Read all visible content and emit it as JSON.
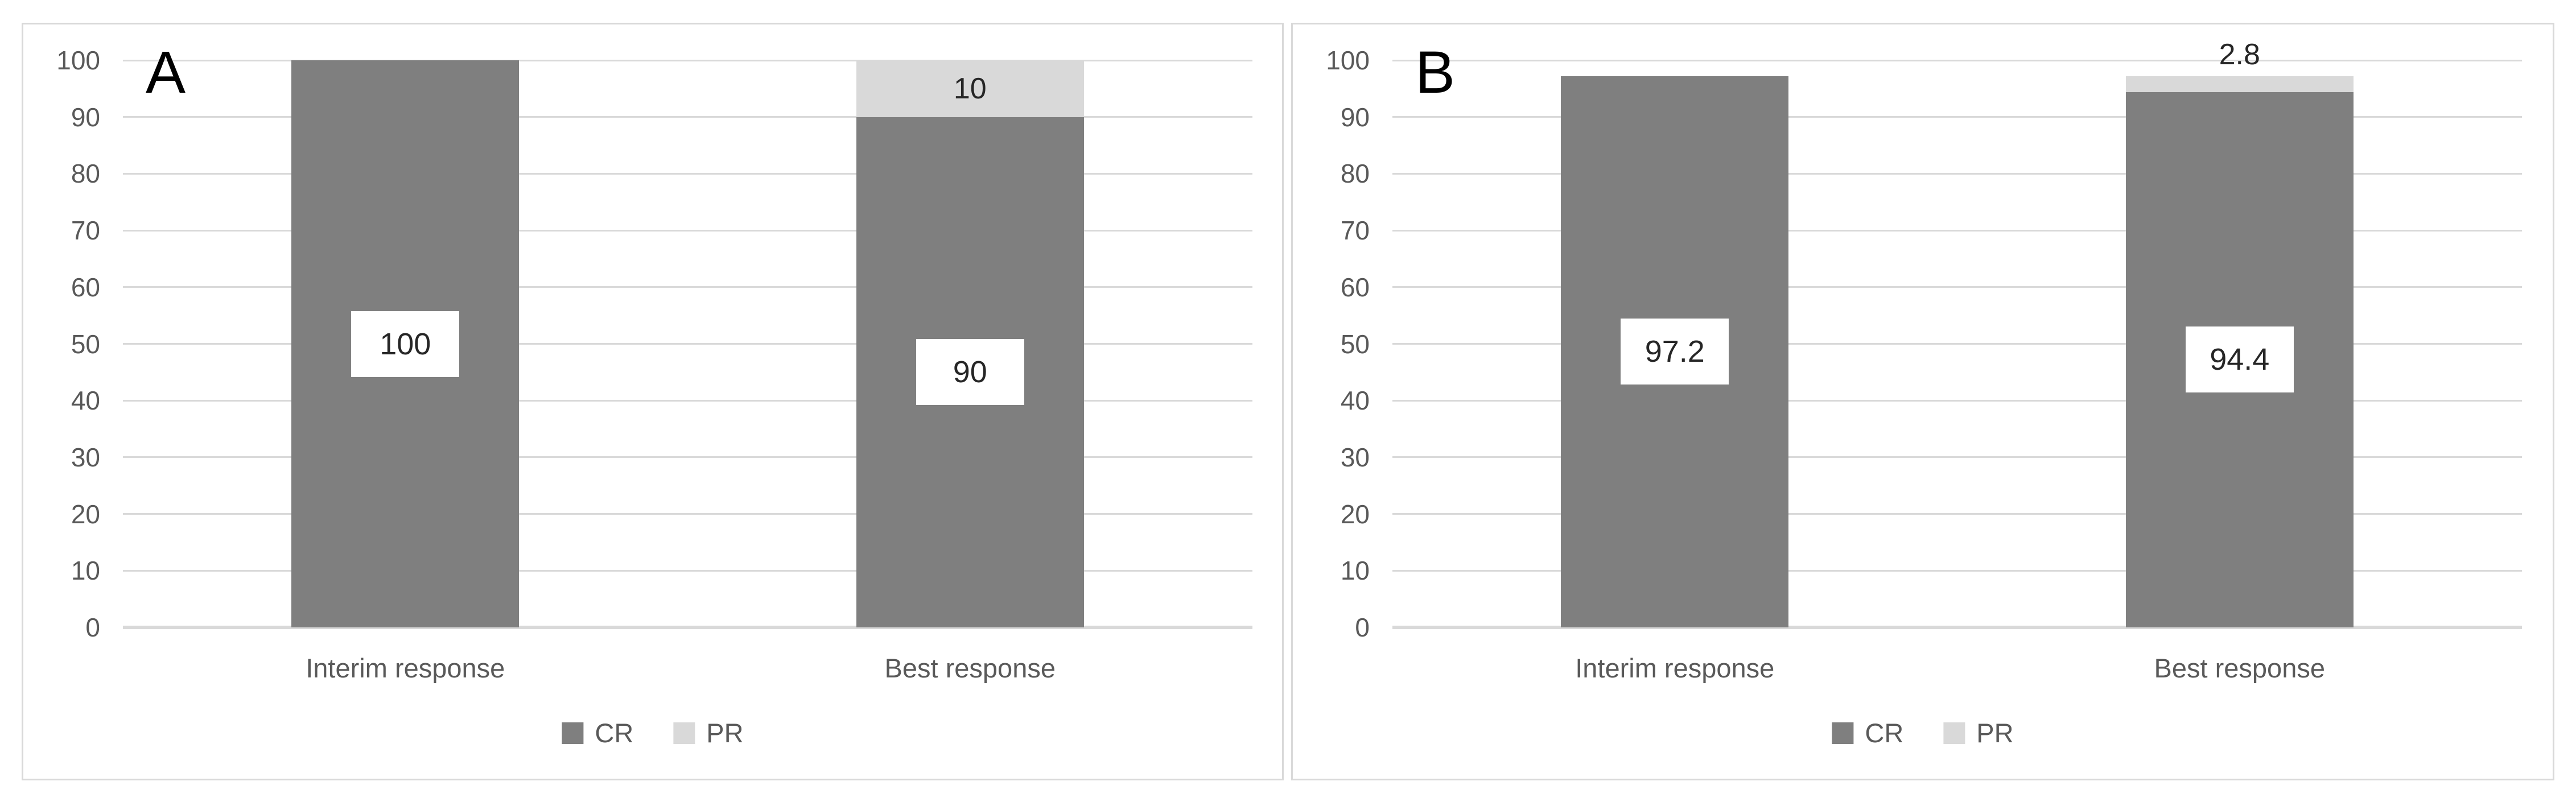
{
  "colors": {
    "cr_bar": "#7f7f7f",
    "pr_bar": "#d9d9d9",
    "gridline": "#d9d9d9",
    "panel_border": "#d9d9d9",
    "axis_text": "#595959",
    "data_label_text": "#262626",
    "panel_letter": "#000000",
    "background": "#ffffff"
  },
  "chart_data": [
    {
      "type": "bar",
      "stacked": true,
      "panel_label": "A",
      "title": "",
      "xlabel": "",
      "ylabel": "",
      "categories": [
        "Interim response",
        "Best response"
      ],
      "series": [
        {
          "name": "CR",
          "color": "#7f7f7f",
          "values": [
            100,
            90
          ]
        },
        {
          "name": "PR",
          "color": "#d9d9d9",
          "values": [
            0,
            10
          ]
        }
      ],
      "bar_labels": [
        {
          "bar": 0,
          "series": 0,
          "text": "100",
          "style": "boxed"
        },
        {
          "bar": 1,
          "series": 0,
          "text": "90",
          "style": "boxed"
        },
        {
          "bar": 1,
          "series": 1,
          "text": "10",
          "style": "plain"
        }
      ],
      "ylim": [
        0,
        100
      ],
      "yticks": [
        "100",
        "90",
        "80",
        "70",
        "60",
        "50",
        "40",
        "30",
        "20",
        "10",
        "0"
      ],
      "grid": true,
      "legend": {
        "position": "bottom",
        "entries": [
          {
            "label": "CR",
            "color": "#7f7f7f"
          },
          {
            "label": "PR",
            "color": "#d9d9d9"
          }
        ]
      }
    },
    {
      "type": "bar",
      "stacked": true,
      "panel_label": "B",
      "title": "",
      "xlabel": "",
      "ylabel": "",
      "categories": [
        "Interim response",
        "Best response"
      ],
      "series": [
        {
          "name": "CR",
          "color": "#7f7f7f",
          "values": [
            97.2,
            94.4
          ]
        },
        {
          "name": "PR",
          "color": "#d9d9d9",
          "values": [
            0,
            2.8
          ]
        }
      ],
      "bar_labels": [
        {
          "bar": 0,
          "series": 0,
          "text": "97.2",
          "style": "boxed"
        },
        {
          "bar": 1,
          "series": 0,
          "text": "94.4",
          "style": "boxed"
        },
        {
          "bar": 1,
          "series": 1,
          "text": "2.8",
          "style": "above"
        }
      ],
      "ylim": [
        0,
        100
      ],
      "yticks": [
        "100",
        "90",
        "80",
        "70",
        "60",
        "50",
        "40",
        "30",
        "20",
        "10",
        "0"
      ],
      "grid": true,
      "legend": {
        "position": "bottom",
        "entries": [
          {
            "label": "CR",
            "color": "#7f7f7f"
          },
          {
            "label": "PR",
            "color": "#d9d9d9"
          }
        ]
      }
    }
  ]
}
